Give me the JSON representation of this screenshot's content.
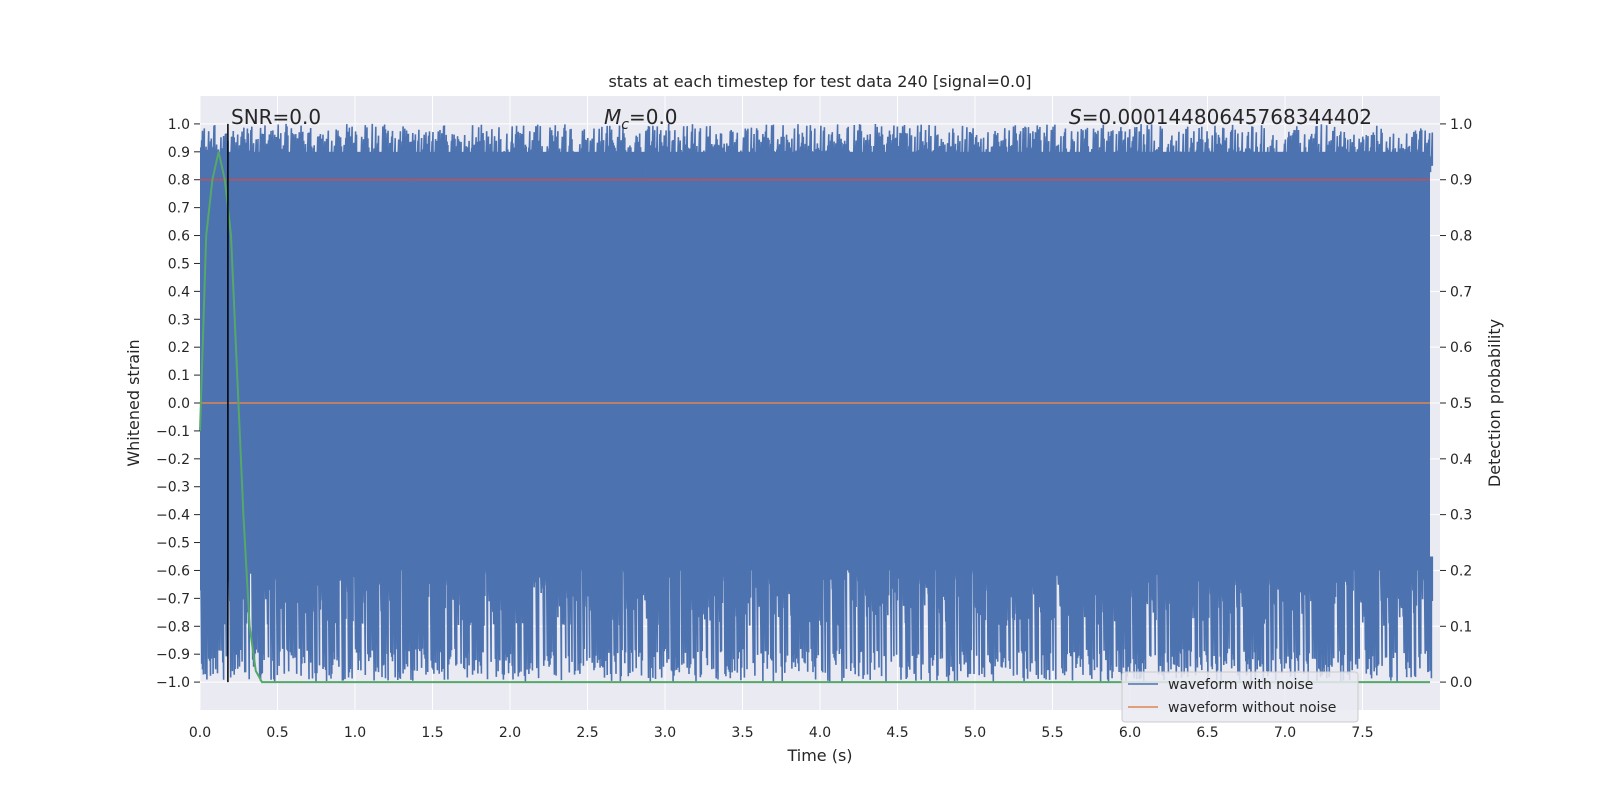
{
  "chart_data": {
    "type": "line",
    "title": "stats at each timestep for test data 240 [signal=0.0]",
    "xlabel": "Time (s)",
    "ylabel": "Whitened strain",
    "y2label": "Detection probability",
    "xlim": [
      0.0,
      8.0
    ],
    "ylim": [
      -1.1,
      1.1
    ],
    "y2lim": [
      -0.05,
      1.05
    ],
    "x_ticks": [
      "0.0",
      "0.5",
      "1.0",
      "1.5",
      "2.0",
      "2.5",
      "3.0",
      "3.5",
      "4.0",
      "4.5",
      "5.0",
      "5.5",
      "6.0",
      "6.5",
      "7.0",
      "7.5"
    ],
    "y_ticks": [
      "1.0",
      "0.9",
      "0.8",
      "0.7",
      "0.6",
      "0.5",
      "0.4",
      "0.3",
      "0.2",
      "0.1",
      "0.0",
      "−0.1",
      "−0.2",
      "−0.3",
      "−0.4",
      "−0.5",
      "−0.6",
      "−0.7",
      "−0.8",
      "−0.9",
      "−1.0"
    ],
    "y2_ticks": [
      "1.0",
      "0.9",
      "0.8",
      "0.7",
      "0.6",
      "0.5",
      "0.4",
      "0.3",
      "0.2",
      "0.1",
      "0.0"
    ],
    "grid": true,
    "legend_placement": "lower-right",
    "annotations": {
      "snr": "SNR=0.0",
      "mc_symbol": "M",
      "mc_sub": "c",
      "mc_value": "=0.0",
      "s_symbol": "S",
      "s_value": "=0.00014480645768344402"
    },
    "series": [
      {
        "name": "waveform with noise",
        "axis": "left",
        "color": "#4c72b0",
        "description_envelope_upper": 1.0,
        "description_envelope_lower": -1.0
      },
      {
        "name": "waveform without noise",
        "axis": "left",
        "color": "#dd8452",
        "x": [
          0.0,
          8.0
        ],
        "y": [
          0.0,
          0.0
        ]
      },
      {
        "name": "",
        "axis": "right",
        "color": "#55a868",
        "x": [
          0.0,
          0.04,
          0.08,
          0.12,
          0.16,
          0.2,
          0.24,
          0.28,
          0.32,
          0.36,
          0.4,
          8.0
        ],
        "y": [
          0.45,
          0.8,
          0.9,
          0.95,
          0.9,
          0.8,
          0.55,
          0.3,
          0.1,
          0.02,
          0.0,
          0.0
        ]
      },
      {
        "name": "",
        "axis": "right",
        "color": "#c44e52",
        "x": [
          0.0,
          8.0
        ],
        "y": [
          0.9,
          0.9
        ]
      }
    ],
    "vline": {
      "x": 0.18,
      "color": "#000000"
    }
  }
}
